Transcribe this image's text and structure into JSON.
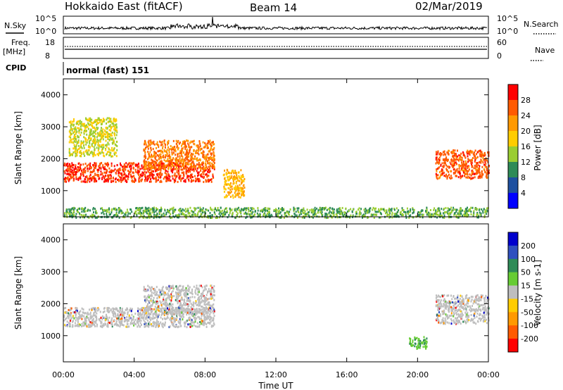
{
  "header": {
    "station": "Hokkaido East (fitACF)",
    "beam": "Beam 14",
    "date": "02/Mar/2019"
  },
  "left_labels": {
    "nsky": "N.Sky",
    "freq": "Freq.",
    "freq_unit": "[MHz]",
    "cpid": "CPID"
  },
  "right_labels": {
    "nsearch": "N.Search",
    "nave": "Nave"
  },
  "noise_panel": {
    "left_ticks": [
      "10^5",
      "10^0"
    ],
    "right_ticks": [
      "10^5",
      "10^0"
    ]
  },
  "freq_panel": {
    "left_ticks": [
      "18",
      "8"
    ],
    "right_ticks": [
      "60",
      "0"
    ]
  },
  "cpid_text": "normal (fast) 151",
  "chart_data": [
    {
      "type": "heatmap",
      "id": "power",
      "ylabel": "Slant Range [km]",
      "xlabel": "",
      "ylim": [
        180,
        4500
      ],
      "yticks": [
        1000,
        2000,
        3000,
        4000
      ],
      "colorbar_label": "Power [dB]",
      "colorbar_ticks": [
        "28",
        "24",
        "20",
        "16",
        "12",
        "8",
        "4"
      ],
      "colorbar_colors": [
        "#ff0000",
        "#ff5a00",
        "#ff9900",
        "#ffcc00",
        "#9acd32",
        "#2e8b57",
        "#1e50a0",
        "#0000ff"
      ],
      "regions": [
        {
          "x": [
            0,
            8.5
          ],
          "y": [
            1300,
            1900
          ],
          "level": 28
        },
        {
          "x": [
            4.5,
            8.5
          ],
          "y": [
            1700,
            2600
          ],
          "level": 24
        },
        {
          "x": [
            9,
            10.2
          ],
          "y": [
            800,
            1700
          ],
          "level": 20
        },
        {
          "x": [
            21,
            24
          ],
          "y": [
            1400,
            2300
          ],
          "level": 26
        },
        {
          "x": [
            0.3,
            3
          ],
          "y": [
            2100,
            3300
          ],
          "level": 16
        },
        {
          "x": [
            0,
            24
          ],
          "y": [
            180,
            500
          ],
          "level": 12
        }
      ]
    },
    {
      "type": "heatmap",
      "id": "velocity",
      "ylabel": "Slant Range [km]",
      "xlabel": "Time UT",
      "ylim": [
        180,
        4500
      ],
      "yticks": [
        1000,
        2000,
        3000,
        4000
      ],
      "xtick_labels": [
        "00:00",
        "04:00",
        "08:00",
        "12:00",
        "16:00",
        "20:00",
        "00:00"
      ],
      "colorbar_label": "Velocity [m s-1]",
      "colorbar_ticks": [
        "200",
        "100",
        "50",
        "15",
        "-15",
        "-50",
        "-100",
        "-200"
      ],
      "colorbar_colors": [
        "#0000cd",
        "#3050c0",
        "#2e8b57",
        "#66cc33",
        "#bebebe",
        "#ffcc00",
        "#ff9900",
        "#ff5a00",
        "#ff0000"
      ],
      "regions": [
        {
          "x": [
            0,
            8.5
          ],
          "y": [
            1300,
            1900
          ],
          "level": 0
        },
        {
          "x": [
            4.5,
            8.5
          ],
          "y": [
            1700,
            2600
          ],
          "level": 0
        },
        {
          "x": [
            21,
            24
          ],
          "y": [
            1400,
            2300
          ],
          "level": 0
        },
        {
          "x": [
            19.5,
            20.5
          ],
          "y": [
            600,
            1000
          ],
          "level": 40
        }
      ]
    }
  ]
}
